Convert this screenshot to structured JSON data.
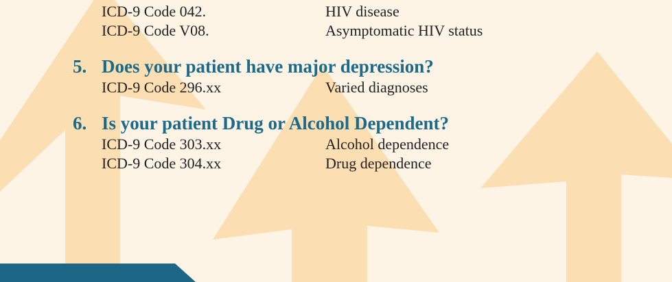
{
  "items": [
    {
      "codes": [
        {
          "code": "ICD-9 Code 042.",
          "description": "HIV disease"
        },
        {
          "code": "ICD-9 Code V08.",
          "description": "Asymptomatic HIV status"
        }
      ]
    },
    {
      "number": "5.",
      "question": "Does your patient have major depression?",
      "codes": [
        {
          "code": "ICD-9 Code 296.xx",
          "description": "Varied diagnoses"
        }
      ]
    },
    {
      "number": "6.",
      "question": "Is your patient Drug or Alcohol Dependent?",
      "codes": [
        {
          "code": "ICD-9 Code 303.xx",
          "description": "Alcohol dependence"
        },
        {
          "code": "ICD-9 Code 304.xx",
          "description": "Drug dependence"
        }
      ]
    }
  ]
}
